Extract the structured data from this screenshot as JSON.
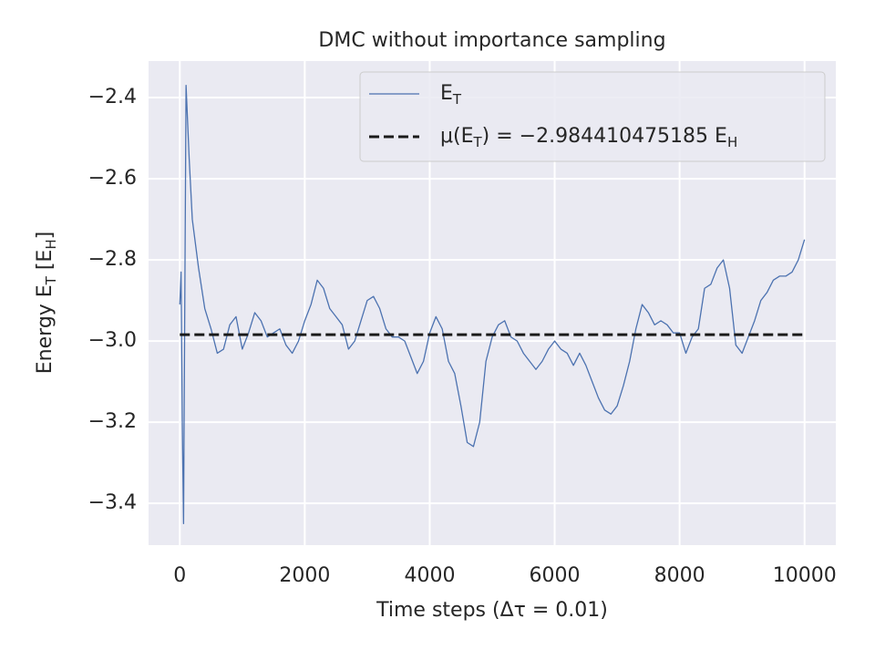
{
  "chart_data": {
    "type": "line",
    "title": "DMC without importance sampling",
    "xlabel": "Time steps (Δτ = 0.01)",
    "ylabel": "Energy E_T [E_H]",
    "xlim": [
      -500,
      10500
    ],
    "ylim": [
      -3.503,
      -2.31
    ],
    "xticks": [
      0,
      2000,
      4000,
      6000,
      8000,
      10000
    ],
    "yticks": [
      {
        "value": -2.4,
        "label": "−2.4"
      },
      {
        "value": -2.6,
        "label": "−2.6"
      },
      {
        "value": -2.8,
        "label": "−2.8"
      },
      {
        "value": -3.0,
        "label": "−3.0"
      },
      {
        "value": -3.2,
        "label": "−3.2"
      },
      {
        "value": -3.4,
        "label": "−3.4"
      }
    ],
    "grid": true,
    "legend": "upper right",
    "series": [
      {
        "name": "E_T",
        "color": "#4c72b0",
        "dash": "solid",
        "x": [
          0,
          20,
          40,
          60,
          80,
          100,
          150,
          200,
          300,
          400,
          500,
          600,
          700,
          800,
          900,
          1000,
          1100,
          1200,
          1300,
          1400,
          1500,
          1600,
          1700,
          1800,
          1900,
          2000,
          2100,
          2200,
          2300,
          2400,
          2500,
          2600,
          2700,
          2800,
          2900,
          3000,
          3100,
          3200,
          3300,
          3400,
          3500,
          3600,
          3700,
          3800,
          3900,
          4000,
          4100,
          4200,
          4300,
          4400,
          4500,
          4600,
          4700,
          4800,
          4900,
          5000,
          5100,
          5200,
          5300,
          5400,
          5500,
          5600,
          5700,
          5800,
          5900,
          6000,
          6100,
          6200,
          6300,
          6400,
          6500,
          6600,
          6700,
          6800,
          6900,
          7000,
          7100,
          7200,
          7300,
          7400,
          7500,
          7600,
          7700,
          7800,
          7900,
          8000,
          8100,
          8200,
          8300,
          8400,
          8500,
          8600,
          8700,
          8800,
          8900,
          9000,
          9100,
          9200,
          9300,
          9400,
          9500,
          9600,
          9700,
          9800,
          9900,
          9999
        ],
        "values": [
          -2.91,
          -2.83,
          -3.2,
          -3.45,
          -2.9,
          -2.37,
          -2.55,
          -2.7,
          -2.82,
          -2.92,
          -2.97,
          -3.03,
          -3.02,
          -2.96,
          -2.94,
          -3.02,
          -2.98,
          -2.93,
          -2.95,
          -2.99,
          -2.98,
          -2.97,
          -3.01,
          -3.03,
          -3.0,
          -2.95,
          -2.91,
          -2.85,
          -2.87,
          -2.92,
          -2.94,
          -2.96,
          -3.02,
          -3.0,
          -2.95,
          -2.9,
          -2.89,
          -2.92,
          -2.97,
          -2.99,
          -2.99,
          -3.0,
          -3.04,
          -3.08,
          -3.05,
          -2.98,
          -2.94,
          -2.97,
          -3.05,
          -3.08,
          -3.16,
          -3.25,
          -3.26,
          -3.2,
          -3.05,
          -2.99,
          -2.96,
          -2.95,
          -2.99,
          -3.0,
          -3.03,
          -3.05,
          -3.07,
          -3.05,
          -3.02,
          -3.0,
          -3.02,
          -3.03,
          -3.06,
          -3.03,
          -3.06,
          -3.1,
          -3.14,
          -3.17,
          -3.18,
          -3.16,
          -3.11,
          -3.05,
          -2.97,
          -2.91,
          -2.93,
          -2.96,
          -2.95,
          -2.96,
          -2.98,
          -2.98,
          -3.03,
          -2.99,
          -2.97,
          -2.87,
          -2.86,
          -2.82,
          -2.8,
          -2.87,
          -3.01,
          -3.03,
          -2.99,
          -2.95,
          -2.9,
          -2.88,
          -2.85,
          -2.84,
          -2.84,
          -2.83,
          -2.8,
          -2.75
        ]
      },
      {
        "name": "μ(E_T) = −2.984410475185 E_H",
        "color": "#1a1a1a",
        "dash": "dashed",
        "x": [
          0,
          9999
        ],
        "values": [
          -2.984410475185,
          -2.984410475185
        ]
      }
    ]
  }
}
